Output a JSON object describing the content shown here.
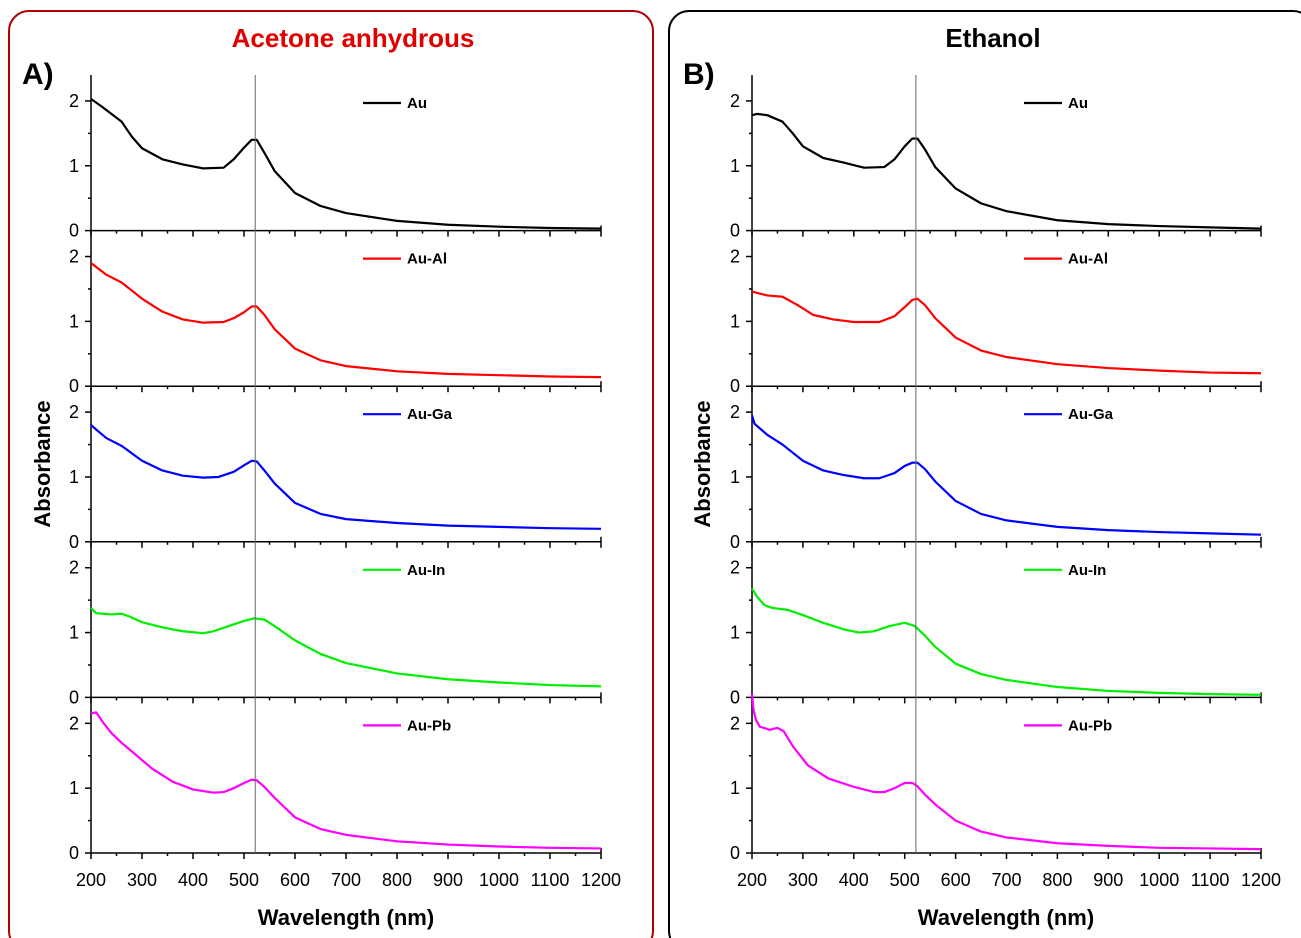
{
  "figure": {
    "colors": {
      "panel_a_border": "#b00000",
      "panel_b_border": "#000000",
      "title_a": "#e00000",
      "title_b": "#000000",
      "marker_line": "#666666"
    }
  },
  "chart_data": [
    {
      "type": "line",
      "panel_letter": "A)",
      "title": "Acetone anhydrous",
      "xlabel": "Wavelength (nm)",
      "ylabel": "Absorbance",
      "xlim": [
        200,
        1200
      ],
      "ylim": [
        0,
        2.4
      ],
      "x_ticks": [
        200,
        300,
        400,
        500,
        600,
        700,
        800,
        900,
        1000,
        1100,
        1200
      ],
      "y_ticks": [
        0,
        1,
        2
      ],
      "reference_line_x": 522,
      "legend_position": "top-right",
      "grid": false,
      "series": [
        {
          "name": "Au",
          "color": "#000000",
          "x": [
            200,
            220,
            240,
            260,
            280,
            300,
            340,
            380,
            420,
            460,
            480,
            500,
            515,
            525,
            540,
            560,
            600,
            650,
            700,
            800,
            900,
            1000,
            1100,
            1200
          ],
          "y": [
            2.03,
            1.92,
            1.8,
            1.68,
            1.45,
            1.27,
            1.1,
            1.02,
            0.96,
            0.97,
            1.1,
            1.28,
            1.4,
            1.4,
            1.2,
            0.92,
            0.58,
            0.38,
            0.27,
            0.15,
            0.09,
            0.06,
            0.04,
            0.03
          ]
        },
        {
          "name": "Au-Al",
          "color": "#ff0000",
          "x": [
            200,
            230,
            260,
            300,
            340,
            380,
            420,
            460,
            480,
            500,
            515,
            525,
            540,
            560,
            600,
            650,
            700,
            800,
            900,
            1000,
            1100,
            1200
          ],
          "y": [
            1.9,
            1.72,
            1.6,
            1.35,
            1.15,
            1.03,
            0.98,
            0.99,
            1.05,
            1.14,
            1.23,
            1.23,
            1.1,
            0.88,
            0.58,
            0.4,
            0.31,
            0.23,
            0.19,
            0.17,
            0.15,
            0.14
          ]
        },
        {
          "name": "Au-Ga",
          "color": "#0000ff",
          "x": [
            200,
            230,
            260,
            300,
            340,
            380,
            420,
            450,
            480,
            500,
            515,
            525,
            540,
            560,
            600,
            650,
            700,
            800,
            900,
            1000,
            1100,
            1200
          ],
          "y": [
            1.8,
            1.6,
            1.48,
            1.25,
            1.1,
            1.02,
            0.99,
            1.0,
            1.08,
            1.18,
            1.25,
            1.24,
            1.1,
            0.9,
            0.6,
            0.43,
            0.35,
            0.29,
            0.25,
            0.23,
            0.21,
            0.2
          ]
        },
        {
          "name": "Au-In",
          "color": "#00ee00",
          "x": [
            200,
            210,
            240,
            260,
            275,
            300,
            340,
            380,
            420,
            440,
            470,
            500,
            520,
            540,
            560,
            600,
            650,
            700,
            800,
            900,
            1000,
            1100,
            1200
          ],
          "y": [
            1.38,
            1.3,
            1.28,
            1.29,
            1.25,
            1.16,
            1.08,
            1.02,
            0.99,
            1.02,
            1.1,
            1.18,
            1.22,
            1.2,
            1.1,
            0.88,
            0.67,
            0.53,
            0.37,
            0.28,
            0.23,
            0.19,
            0.17
          ]
        },
        {
          "name": "Au-Pb",
          "color": "#ff00ff",
          "x": [
            200,
            210,
            225,
            240,
            260,
            290,
            320,
            360,
            400,
            440,
            460,
            480,
            500,
            515,
            525,
            540,
            560,
            600,
            650,
            700,
            800,
            900,
            1000,
            1100,
            1200
          ],
          "y": [
            2.15,
            2.17,
            2.0,
            1.85,
            1.7,
            1.5,
            1.3,
            1.1,
            0.98,
            0.93,
            0.94,
            1.0,
            1.08,
            1.13,
            1.12,
            1.02,
            0.85,
            0.55,
            0.37,
            0.28,
            0.18,
            0.13,
            0.1,
            0.08,
            0.07
          ]
        }
      ]
    },
    {
      "type": "line",
      "panel_letter": "B)",
      "title": "Ethanol",
      "xlabel": "Wavelength (nm)",
      "ylabel": "Absorbance",
      "xlim": [
        200,
        1200
      ],
      "ylim": [
        0,
        2.4
      ],
      "x_ticks": [
        200,
        300,
        400,
        500,
        600,
        700,
        800,
        900,
        1000,
        1100,
        1200
      ],
      "y_ticks": [
        0,
        1,
        2
      ],
      "reference_line_x": 522,
      "legend_position": "top-right",
      "grid": false,
      "series": [
        {
          "name": "Au",
          "color": "#000000",
          "x": [
            200,
            210,
            230,
            260,
            280,
            300,
            340,
            380,
            420,
            460,
            480,
            500,
            515,
            525,
            540,
            560,
            600,
            650,
            700,
            800,
            900,
            1000,
            1100,
            1200
          ],
          "y": [
            1.78,
            1.8,
            1.78,
            1.68,
            1.5,
            1.3,
            1.12,
            1.05,
            0.97,
            0.98,
            1.1,
            1.3,
            1.42,
            1.42,
            1.25,
            0.98,
            0.65,
            0.42,
            0.3,
            0.16,
            0.1,
            0.07,
            0.05,
            0.03
          ]
        },
        {
          "name": "Au-Al",
          "color": "#ff0000",
          "x": [
            200,
            230,
            260,
            290,
            320,
            360,
            400,
            450,
            480,
            500,
            515,
            525,
            540,
            560,
            600,
            650,
            700,
            800,
            900,
            1000,
            1100,
            1200
          ],
          "y": [
            1.46,
            1.4,
            1.38,
            1.25,
            1.1,
            1.03,
            0.99,
            0.99,
            1.08,
            1.22,
            1.33,
            1.35,
            1.25,
            1.05,
            0.75,
            0.55,
            0.45,
            0.34,
            0.28,
            0.24,
            0.21,
            0.2
          ]
        },
        {
          "name": "Au-Ga",
          "color": "#0000ff",
          "x": [
            200,
            205,
            230,
            260,
            300,
            340,
            380,
            420,
            450,
            480,
            500,
            515,
            525,
            540,
            560,
            600,
            650,
            700,
            800,
            900,
            1000,
            1100,
            1200
          ],
          "y": [
            1.95,
            1.82,
            1.65,
            1.5,
            1.25,
            1.1,
            1.03,
            0.98,
            0.98,
            1.06,
            1.17,
            1.22,
            1.22,
            1.12,
            0.93,
            0.63,
            0.43,
            0.33,
            0.23,
            0.18,
            0.15,
            0.13,
            0.11
          ]
        },
        {
          "name": "Au-In",
          "color": "#00ee00",
          "x": [
            200,
            210,
            225,
            240,
            270,
            300,
            340,
            380,
            410,
            440,
            470,
            500,
            520,
            540,
            560,
            600,
            650,
            700,
            800,
            900,
            1000,
            1100,
            1200
          ],
          "y": [
            1.68,
            1.55,
            1.42,
            1.38,
            1.35,
            1.27,
            1.15,
            1.05,
            1.0,
            1.02,
            1.1,
            1.15,
            1.1,
            0.95,
            0.78,
            0.52,
            0.36,
            0.27,
            0.16,
            0.1,
            0.07,
            0.05,
            0.04
          ]
        },
        {
          "name": "Au-Pb",
          "color": "#ff00ff",
          "x": [
            200,
            203,
            208,
            215,
            235,
            250,
            262,
            280,
            310,
            350,
            400,
            440,
            460,
            480,
            500,
            515,
            525,
            540,
            560,
            600,
            650,
            700,
            800,
            900,
            1000,
            1100,
            1200
          ],
          "y": [
            2.45,
            2.2,
            2.05,
            1.95,
            1.9,
            1.93,
            1.88,
            1.65,
            1.35,
            1.15,
            1.02,
            0.94,
            0.94,
            1.0,
            1.08,
            1.08,
            1.03,
            0.9,
            0.75,
            0.5,
            0.33,
            0.24,
            0.15,
            0.11,
            0.08,
            0.07,
            0.06
          ]
        }
      ]
    }
  ]
}
